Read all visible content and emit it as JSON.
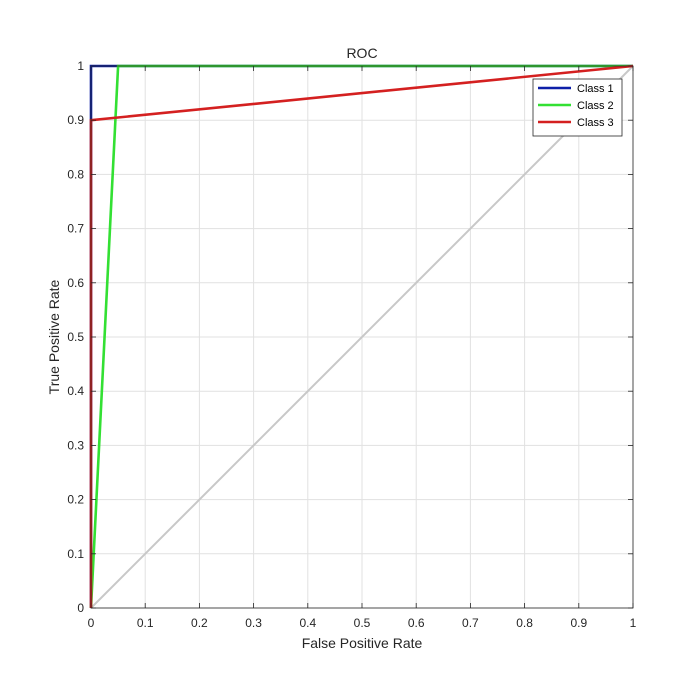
{
  "chart_data": {
    "type": "line",
    "title": "ROC",
    "xlabel": "False Positive Rate",
    "ylabel": "True Positive Rate",
    "xlim": [
      0,
      1
    ],
    "ylim": [
      0,
      1
    ],
    "xticks": [
      "0",
      "0.1",
      "0.2",
      "0.3",
      "0.4",
      "0.5",
      "0.6",
      "0.7",
      "0.8",
      "0.9",
      "1"
    ],
    "yticks": [
      "0",
      "0.1",
      "0.2",
      "0.3",
      "0.4",
      "0.5",
      "0.6",
      "0.7",
      "0.8",
      "0.9",
      "1"
    ],
    "grid": true,
    "legend_position": "top-right",
    "reference_line": {
      "x": [
        0,
        1
      ],
      "y": [
        0,
        1
      ],
      "color": "#c8c8c8"
    },
    "series": [
      {
        "name": "Class 1",
        "color": "#0d1fa8",
        "x": [
          0,
          0,
          0.05,
          1
        ],
        "y": [
          0,
          1,
          1,
          1
        ]
      },
      {
        "name": "Class 2",
        "color": "#33e033",
        "x": [
          0,
          0.05,
          1
        ],
        "y": [
          0,
          1,
          1
        ]
      },
      {
        "name": "Class 3",
        "color": "#d42020",
        "x": [
          0,
          0,
          1
        ],
        "y": [
          0,
          0.9,
          1
        ]
      }
    ]
  }
}
